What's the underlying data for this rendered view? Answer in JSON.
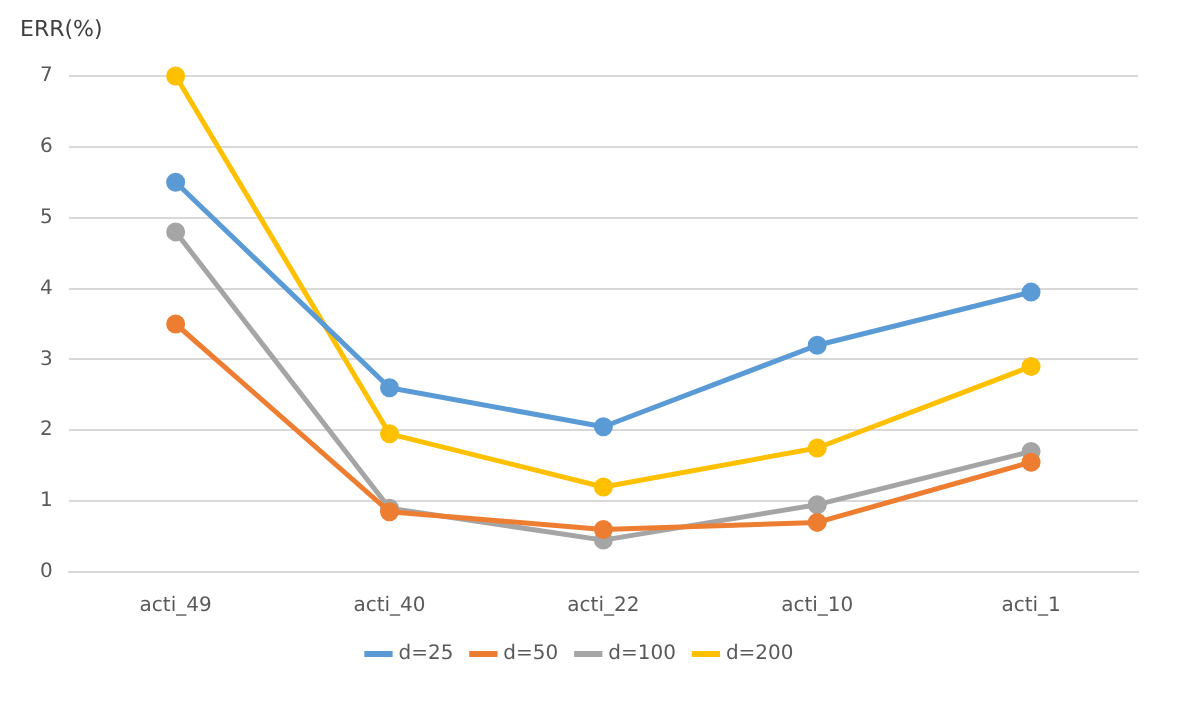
{
  "chart_data": {
    "type": "line",
    "ylabel": "ERR(%)",
    "categories": [
      "acti_49",
      "acti_40",
      "acti_22",
      "acti_10",
      "acti_1"
    ],
    "series": [
      {
        "name": "d=25",
        "color": "#5b9bd5",
        "values": [
          5.5,
          2.6,
          2.05,
          3.2,
          3.95
        ]
      },
      {
        "name": "d=50",
        "color": "#ed7d31",
        "values": [
          3.5,
          0.85,
          0.6,
          0.7,
          1.55
        ]
      },
      {
        "name": "d=100",
        "color": "#a5a5a5",
        "values": [
          4.8,
          0.9,
          0.45,
          0.95,
          1.7
        ]
      },
      {
        "name": "d=200",
        "color": "#ffc000",
        "values": [
          7.0,
          1.95,
          1.2,
          1.75,
          2.9
        ]
      }
    ],
    "ylim": [
      0,
      7
    ],
    "yticks": [
      0,
      1,
      2,
      3,
      4,
      5,
      6,
      7
    ],
    "grid": "y",
    "legend": "bottom",
    "marker": "circle",
    "line_style": "solid"
  }
}
